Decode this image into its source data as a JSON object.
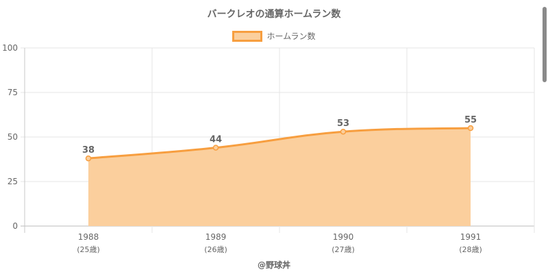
{
  "colors": {
    "line": "#f79e3f",
    "fill": "#fbcf9d",
    "grid": "#e6e6e6",
    "axis": "#c8c8c8",
    "text": "#666666"
  },
  "chart_data": {
    "type": "area",
    "title": "バークレオの通算ホームラン数",
    "categories": [
      "1988",
      "1989",
      "1990",
      "1991"
    ],
    "category_sublabels": [
      "(25歳)",
      "(26歳)",
      "(27歳)",
      "(28歳)"
    ],
    "series": [
      {
        "name": "ホームラン数",
        "values": [
          38,
          44,
          53,
          55
        ]
      }
    ],
    "ylim": [
      0,
      100
    ],
    "yticks": [
      0,
      25,
      50,
      75,
      100
    ],
    "grid": true,
    "legend_position": "top",
    "show_data_labels": true
  },
  "footer": {
    "credit": "@野球丼"
  }
}
